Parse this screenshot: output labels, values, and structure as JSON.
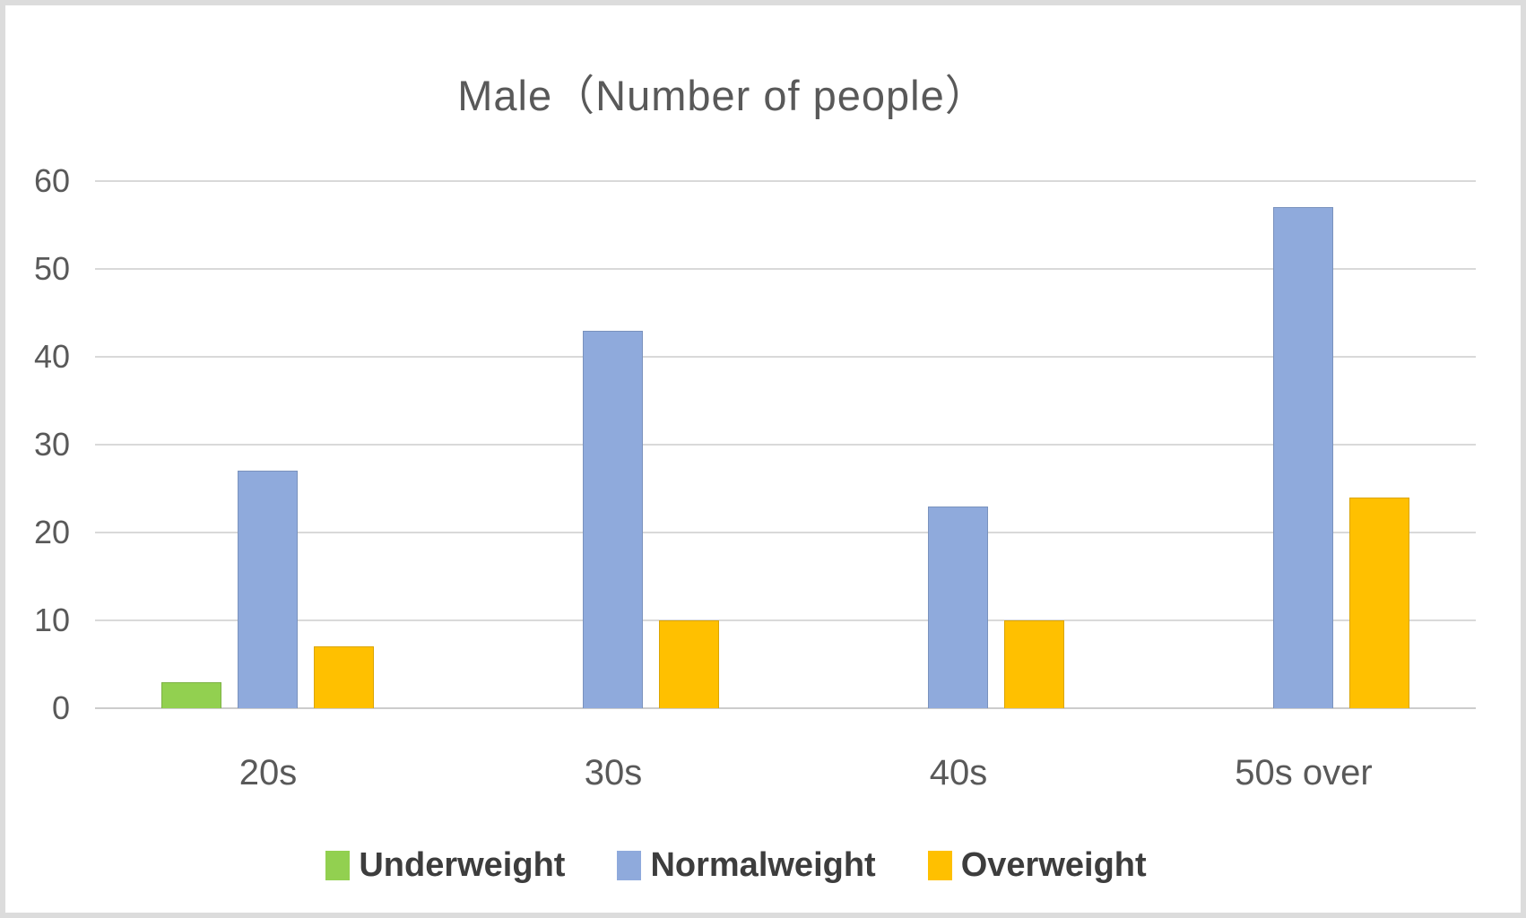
{
  "title": "Male（Number of people）",
  "colors": {
    "frame_border": "#dcdcdc",
    "background": "#ffffff",
    "gridline": "#d9d9d9",
    "axis_text": "#595959",
    "legend_text": "#3d3d3d"
  },
  "chart_data": {
    "type": "bar",
    "title": "Male（Number of people）",
    "categories": [
      "20s",
      "30s",
      "40s",
      "50s over"
    ],
    "series": [
      {
        "name": "Underweight",
        "color": "#92d050",
        "values": [
          3,
          0,
          0,
          0
        ]
      },
      {
        "name": "Normalweight",
        "color": "#8faadc",
        "values": [
          27,
          43,
          23,
          57
        ]
      },
      {
        "name": "Overweight",
        "color": "#ffc000",
        "values": [
          7,
          10,
          10,
          24
        ]
      }
    ],
    "y_axis": {
      "min": 0,
      "max": 60,
      "step": 10,
      "ticks": [
        0,
        10,
        20,
        30,
        40,
        50,
        60
      ]
    },
    "x_axis_label": "",
    "y_axis_label": "",
    "grid": true,
    "legend_position": "bottom"
  }
}
